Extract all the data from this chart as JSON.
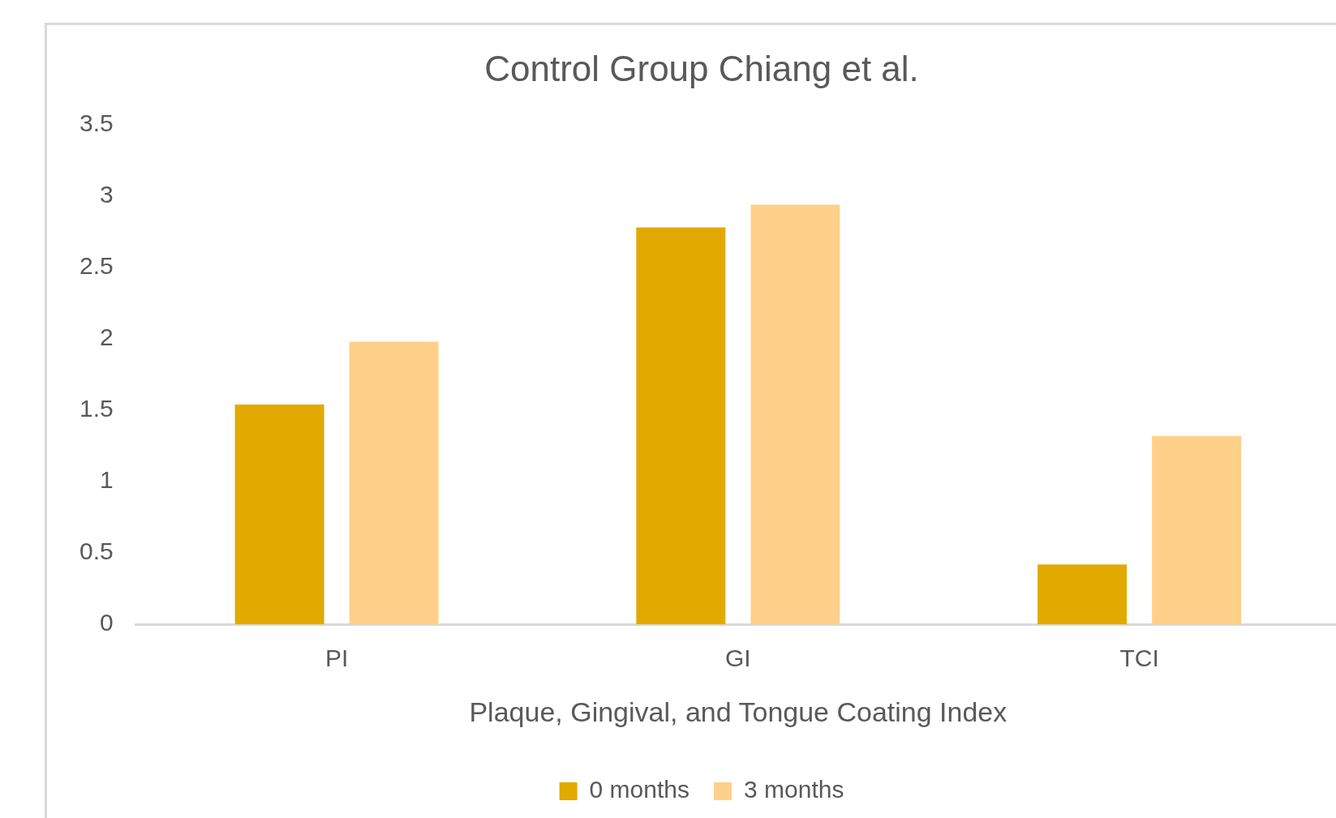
{
  "chart_data": {
    "type": "bar",
    "title": "Control Group Chiang et al.",
    "xlabel": "Plaque, Gingival, and Tongue Coating Index",
    "categories": [
      "PI",
      "GI",
      "TCI"
    ],
    "series": [
      {
        "name": "0 months",
        "color": "#e2aa00",
        "values": [
          1.54,
          2.78,
          0.42
        ]
      },
      {
        "name": "3 months",
        "color": "#ffd08a",
        "values": [
          1.98,
          2.94,
          1.32
        ]
      }
    ],
    "ylim": [
      0,
      3.5
    ],
    "yticks": [
      0,
      0.5,
      1,
      1.5,
      2,
      2.5,
      3,
      3.5
    ],
    "grid": false,
    "legend": "bottom"
  }
}
